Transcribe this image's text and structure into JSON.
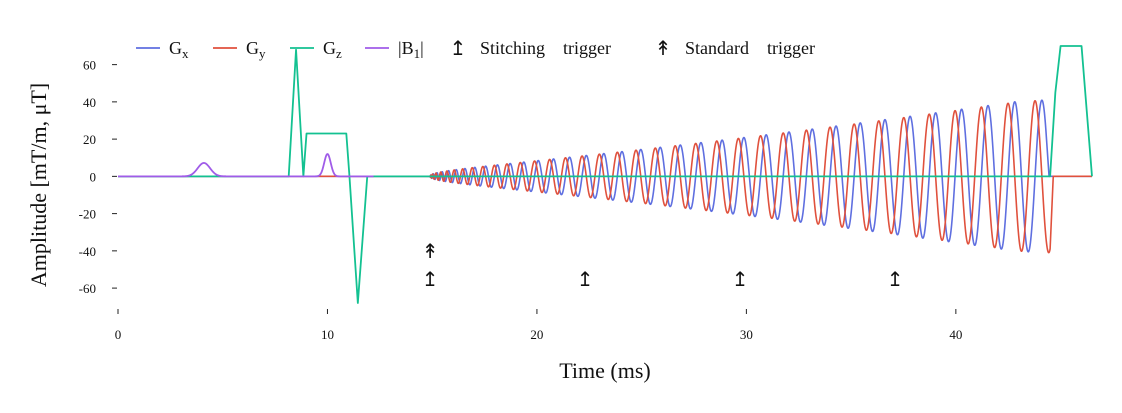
{
  "chart_data": {
    "type": "line",
    "xlabel": "Time (ms)",
    "ylabel": "Amplitude [mT/m, μT]",
    "xlim": [
      0,
      46.5
    ],
    "ylim": [
      -68,
      70
    ],
    "xticks": [
      0,
      10,
      20,
      30,
      40
    ],
    "yticks": [
      60,
      40,
      20,
      0,
      -20,
      -40,
      -60
    ],
    "grid": false,
    "legend_position": "top",
    "colors": {
      "Gx": "#5f6fe0",
      "Gy": "#e0513d",
      "Gz": "#13c191",
      "B1": "#a05ce8",
      "baseline": "#444444"
    },
    "legend": [
      {
        "key": "Gx",
        "base": "G",
        "sub": "x",
        "kind": "line"
      },
      {
        "key": "Gy",
        "base": "G",
        "sub": "y",
        "kind": "line"
      },
      {
        "key": "Gz",
        "base": "G",
        "sub": "z",
        "kind": "line"
      },
      {
        "key": "B1",
        "base": "|B",
        "sub": "1",
        "suffix": "|",
        "kind": "line"
      },
      {
        "key": "stitching",
        "glyph": "↥",
        "text": "Stitching    trigger",
        "kind": "marker"
      },
      {
        "key": "standard",
        "glyph": "↟",
        "text": "Standard    trigger",
        "kind": "marker"
      }
    ],
    "series": [
      {
        "name": "Gz",
        "x": [
          0,
          8.15,
          8.5,
          8.85,
          9.0,
          10.9,
          11.05,
          11.45,
          11.9,
          12.2,
          44.5,
          44.75,
          45.0,
          46.0,
          46.5
        ],
        "y": [
          0,
          0,
          68,
          0,
          23,
          23,
          0,
          -68,
          0,
          0,
          0,
          45,
          70,
          70,
          0
        ]
      },
      {
        "name": "B1",
        "pulses": [
          {
            "center": 4.1,
            "peak": 7.2,
            "width": 0.42
          },
          {
            "center": 10.0,
            "peak": 12,
            "width": 0.22
          }
        ],
        "range": [
          0,
          12.2
        ]
      },
      {
        "name": "Gx",
        "spiral": {
          "start": 14.9,
          "end": 44.3,
          "phase_offset": 0,
          "amp_max": 41
        }
      },
      {
        "name": "Gy",
        "spiral": {
          "start": 14.9,
          "end": 44.5,
          "phase_offset": 1.57,
          "amp_max": 41
        }
      }
    ],
    "triggers": {
      "stitching": {
        "glyph": "↥",
        "x": [
          14.9,
          22.3,
          29.7,
          37.1
        ],
        "y": -55
      },
      "standard": {
        "glyph": "↟",
        "x": [
          14.9
        ],
        "y": -40
      }
    }
  }
}
